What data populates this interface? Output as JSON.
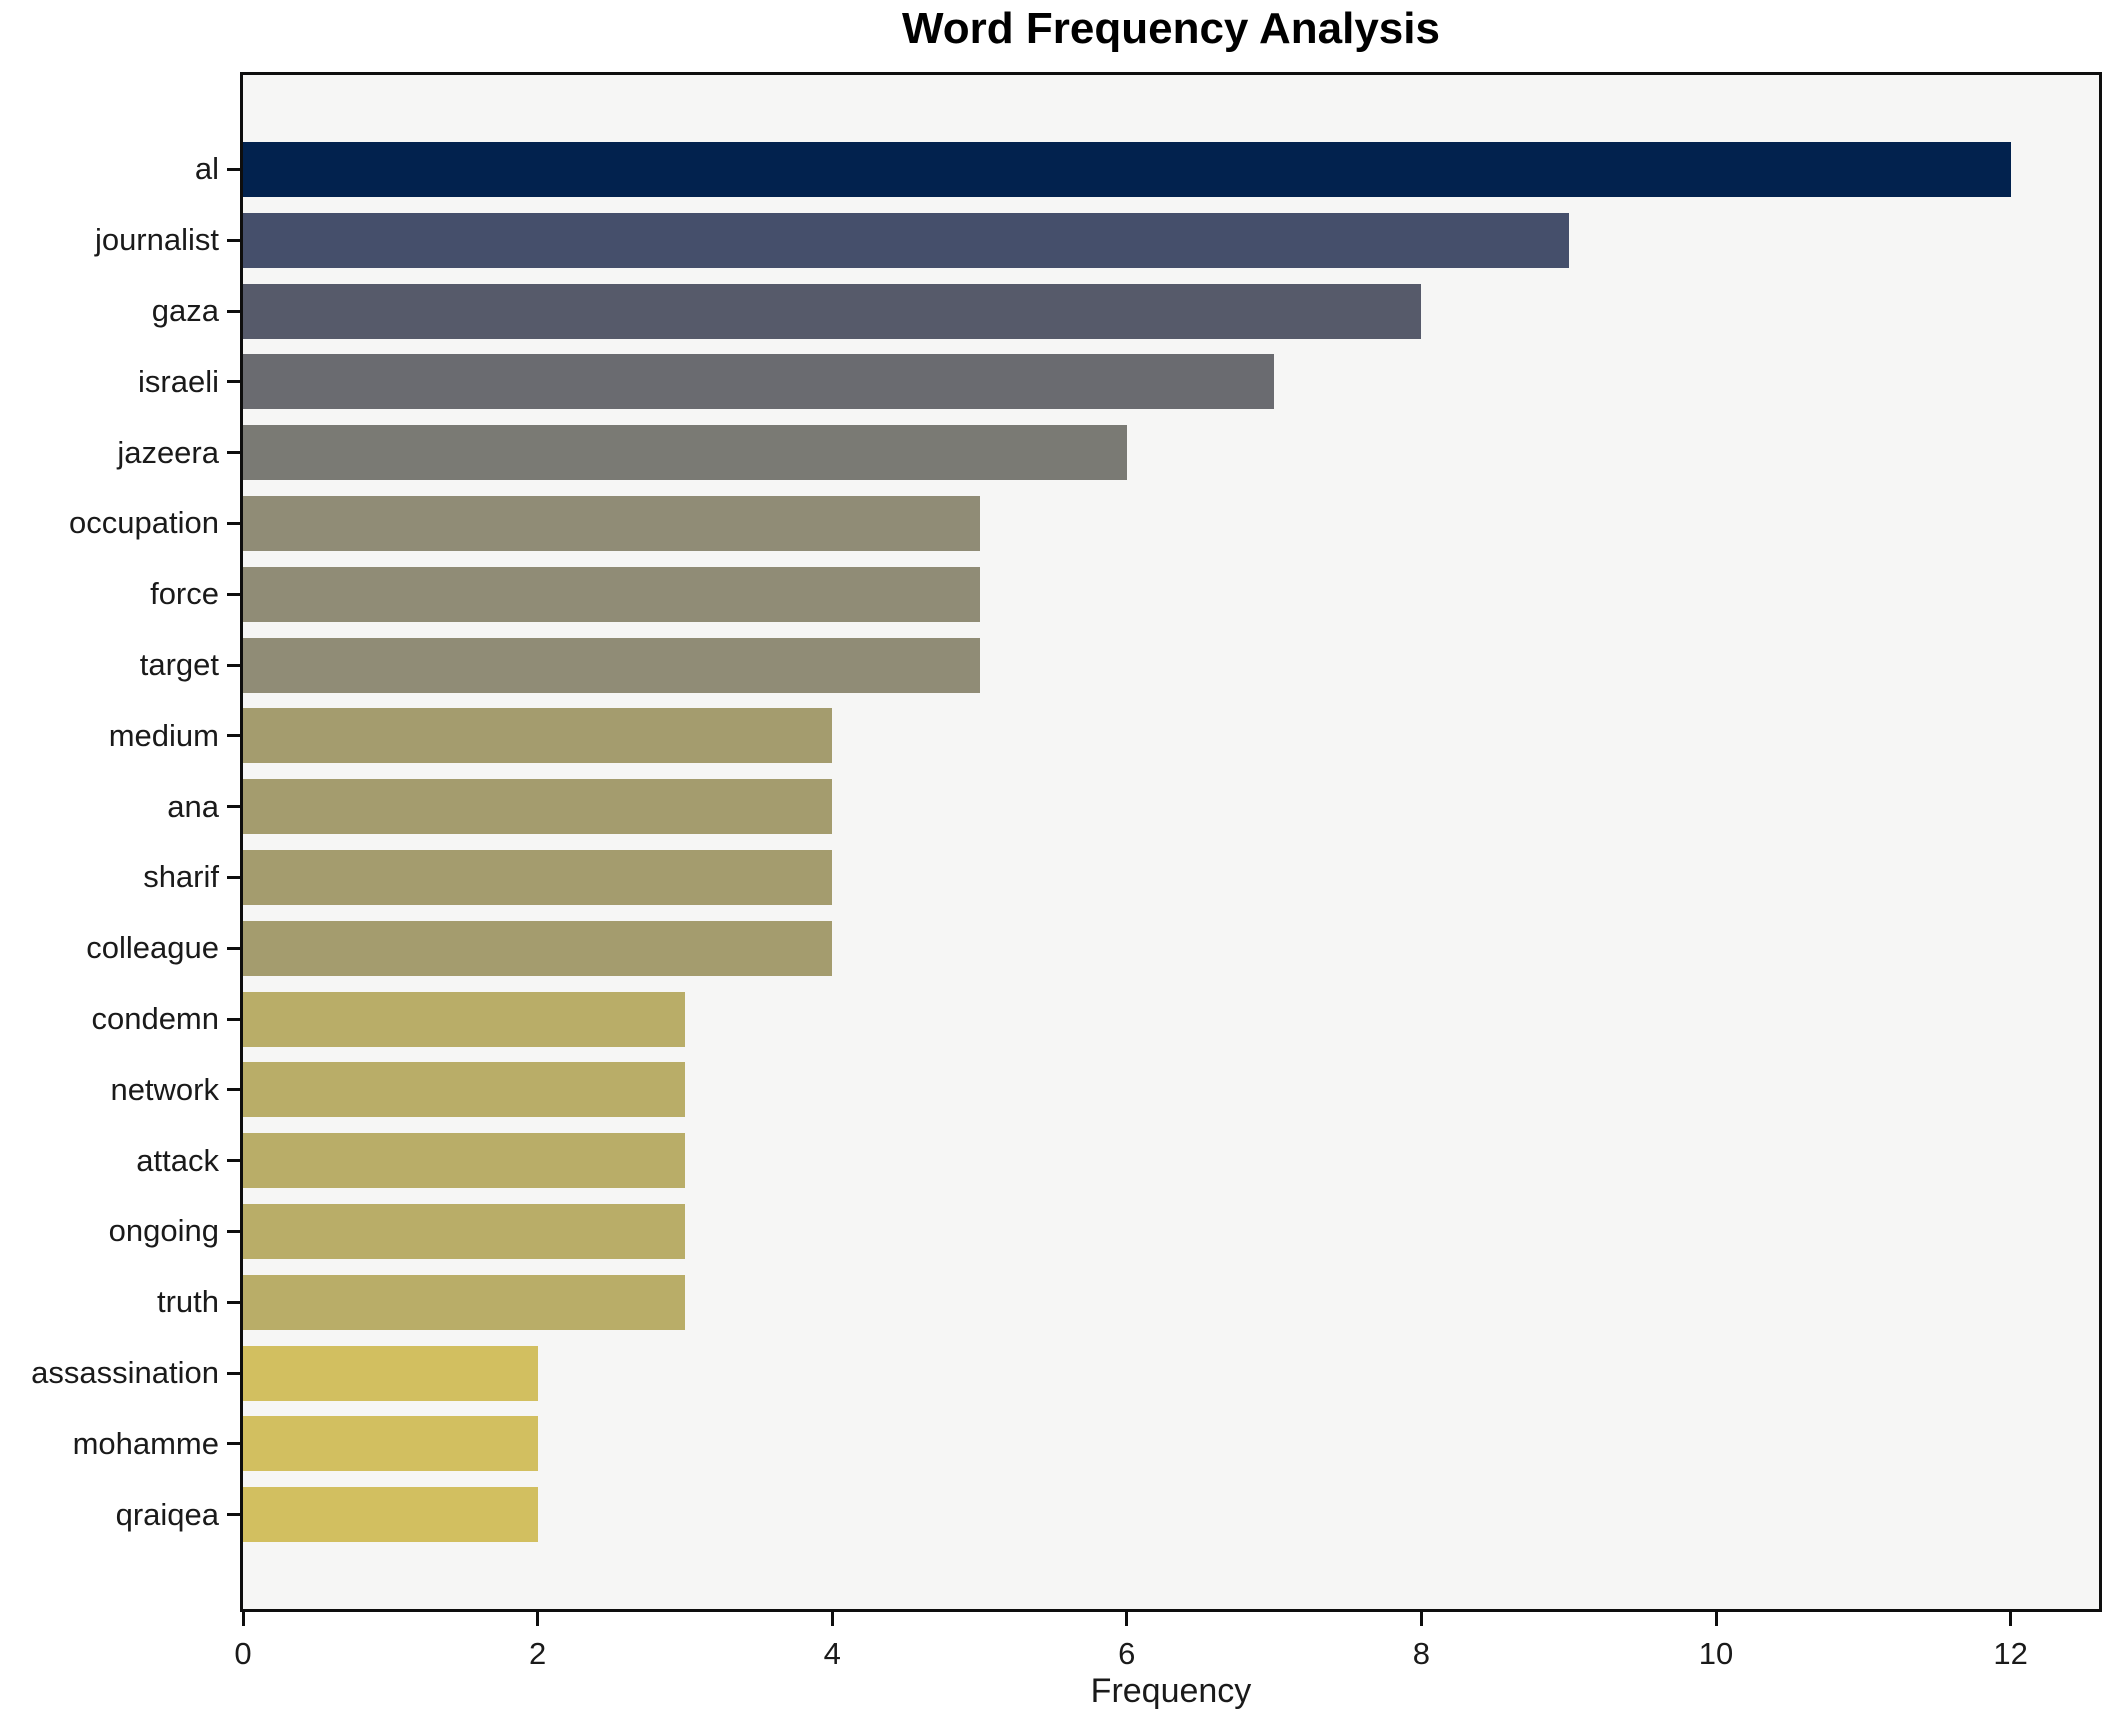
{
  "title": "Word Frequency Analysis",
  "chart_data": {
    "type": "bar",
    "orientation": "horizontal",
    "title": "Word Frequency Analysis",
    "xlabel": "Frequency",
    "ylabel": "",
    "categories": [
      "al",
      "journalist",
      "gaza",
      "israeli",
      "jazeera",
      "occupation",
      "force",
      "target",
      "medium",
      "ana",
      "sharif",
      "colleague",
      "condemn",
      "network",
      "attack",
      "ongoing",
      "truth",
      "assassination",
      "mohamme",
      "qraiqea"
    ],
    "values": [
      12,
      9,
      8,
      7,
      6,
      5,
      5,
      5,
      4,
      4,
      4,
      4,
      3,
      3,
      3,
      3,
      3,
      2,
      2,
      2
    ],
    "bar_colors": [
      "#02224e",
      "#454f6b",
      "#565a6a",
      "#6a6b70",
      "#7a7a74",
      "#908c76",
      "#908c76",
      "#908c76",
      "#a49c6e",
      "#a49c6e",
      "#a49c6e",
      "#a49c6e",
      "#b9ad68",
      "#b9ad68",
      "#b9ad68",
      "#b9ad68",
      "#b9ad68",
      "#d2bf60",
      "#d2bf60",
      "#d2bf60"
    ],
    "x_ticks": [
      0,
      2,
      4,
      6,
      8,
      10,
      12
    ],
    "xlim": [
      0,
      12.6
    ],
    "grid": false,
    "legend": "none",
    "plot_background": "#f6f6f5",
    "figure_background": "#ffffff",
    "spine_color": "#0e0e0e"
  }
}
